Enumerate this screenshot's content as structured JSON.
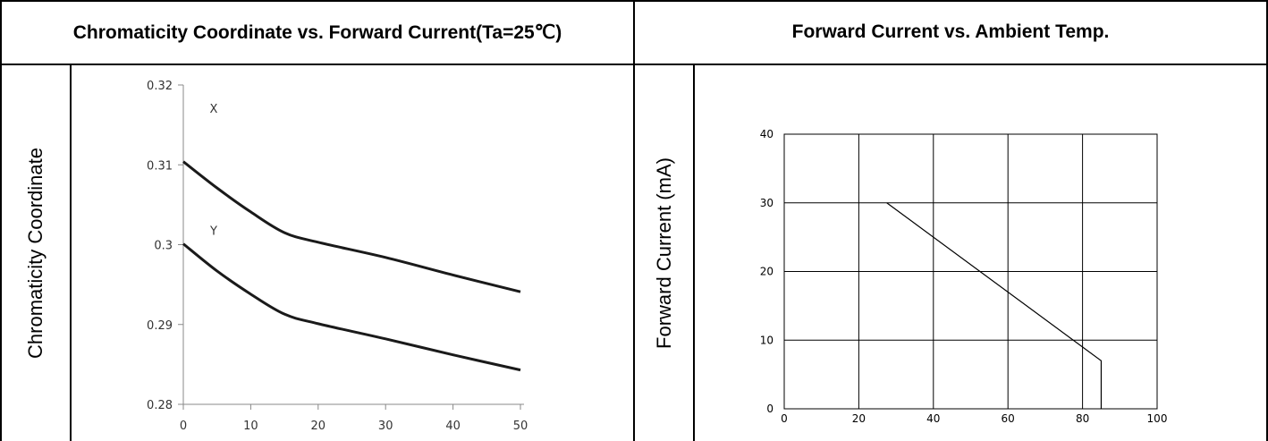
{
  "panels": [
    {
      "title": "Chromaticity Coordinate vs. Forward Current(Ta=25℃)",
      "ylabel": "Chromaticity Coordinate"
    },
    {
      "title": "Forward Current vs. Ambient Temp.",
      "ylabel": "Forward Current (mA)"
    }
  ],
  "chart_data": [
    {
      "type": "line",
      "title": "Chromaticity Coordinate vs. Forward Current(Ta=25℃)",
      "xlabel": "",
      "ylabel": "Chromaticity Coordinate",
      "xlim": [
        0,
        50
      ],
      "ylim": [
        0.28,
        0.32
      ],
      "x_ticks": [
        "0",
        "10",
        "20",
        "30",
        "40",
        "50"
      ],
      "y_ticks": [
        "0.28",
        "0.29",
        "0.3",
        "0.31",
        "0.32"
      ],
      "grid": false,
      "color": "#1a1a1a",
      "series": [
        {
          "name": "X",
          "x": [
            0,
            5,
            10,
            15,
            20,
            30,
            40,
            50
          ],
          "y": [
            0.3104,
            0.3071,
            0.3041,
            0.3015,
            0.3003,
            0.2984,
            0.2962,
            0.2941
          ]
        },
        {
          "name": "Y",
          "x": [
            0,
            5,
            10,
            15,
            20,
            30,
            40,
            50
          ],
          "y": [
            0.3001,
            0.2967,
            0.2938,
            0.2913,
            0.2901,
            0.2882,
            0.2862,
            0.2843
          ]
        }
      ]
    },
    {
      "type": "line",
      "title": "Forward Current vs. Ambient Temp.",
      "xlabel": "",
      "ylabel": "Forward Current (mA)",
      "xlim": [
        0,
        100
      ],
      "ylim": [
        0,
        40
      ],
      "x_ticks": [
        "0",
        "20",
        "40",
        "60",
        "80",
        "100"
      ],
      "y_ticks": [
        "0",
        "10",
        "20",
        "30",
        "40"
      ],
      "grid": true,
      "color": "#000000",
      "series": [
        {
          "name": "",
          "x": [
            27.5,
            85,
            85
          ],
          "y": [
            30,
            7,
            0
          ]
        }
      ]
    }
  ]
}
